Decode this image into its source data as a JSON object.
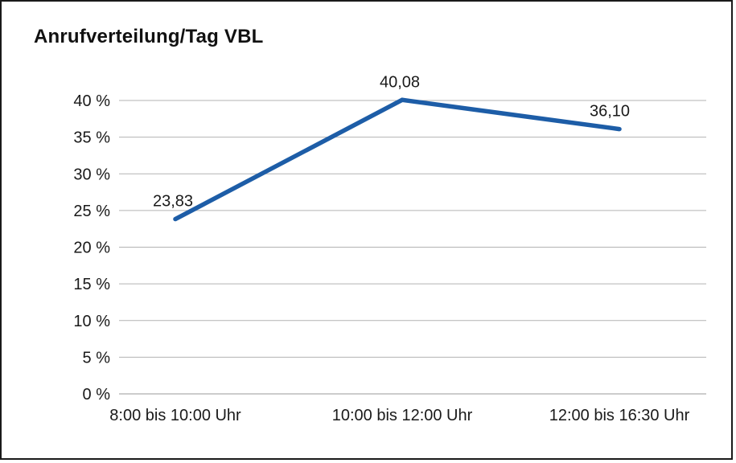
{
  "title": "Anrufverteilung/Tag VBL",
  "colors": {
    "line": "#1d5da7",
    "grid": "#b3b3b3",
    "axis": "#999999",
    "text": "#1a1a1a",
    "frame": "#1a1a1a"
  },
  "chart_data": {
    "type": "line",
    "title": "Anrufverteilung/Tag VBL",
    "categories": [
      "8:00 bis 10:00 Uhr",
      "10:00 bis 12:00 Uhr",
      "12:00 bis 16:30 Uhr"
    ],
    "values": [
      23.83,
      40.08,
      36.1
    ],
    "value_labels": [
      "23,83",
      "40,08",
      "36,10"
    ],
    "xlabel": "",
    "ylabel": "",
    "ylim": [
      0,
      40
    ],
    "ytick_step": 5,
    "ytick_labels": [
      "0 %",
      "5 %",
      "10 %",
      "15 %",
      "20 %",
      "25 %",
      "30 %",
      "35 %",
      "40 %"
    ],
    "grid": true,
    "legend": false
  }
}
